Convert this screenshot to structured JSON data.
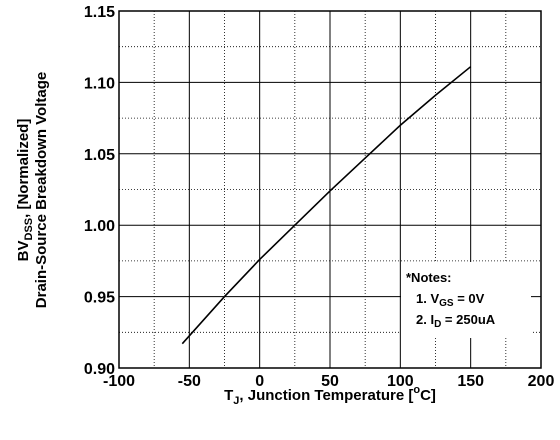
{
  "chart_data": {
    "type": "line",
    "xlim": [
      -100,
      200
    ],
    "ylim": [
      0.9,
      1.15
    ],
    "x_ticks": [
      -100,
      -50,
      0,
      50,
      100,
      150,
      200
    ],
    "x_tick_labels": [
      "-100",
      "-50",
      "0",
      "50",
      "100",
      "150",
      "200"
    ],
    "y_ticks": [
      0.9,
      0.95,
      1.0,
      1.05,
      1.1,
      1.15
    ],
    "y_tick_labels": [
      "0.90",
      "0.95",
      "1.00",
      "1.05",
      "1.10",
      "1.15"
    ],
    "grid": "major solid, minor dotted",
    "xlabel": {
      "pre": "T",
      "sub": "J",
      "mid": ", Junction Temperature [",
      "sup": "o",
      "post": "C]"
    },
    "ylabel": {
      "line1_pre": "BV",
      "line1_sub": "DSS",
      "line1_post": ", [Normalized]",
      "line2": "Drain-Source Breakdown Voltage"
    },
    "series": [
      {
        "x": [
          -55,
          -25,
          0,
          25,
          50,
          75,
          100,
          125,
          150
        ],
        "y": [
          0.917,
          0.95,
          0.976,
          1.0,
          1.024,
          1.047,
          1.07,
          1.091,
          1.111
        ]
      }
    ],
    "annotations": {
      "title": "*Notes:",
      "note1": {
        "pre": "1. V",
        "sub": "GS",
        "post": " = 0V"
      },
      "note2": {
        "pre": "2. I",
        "sub": "D",
        "post": " = 250uA"
      }
    }
  }
}
